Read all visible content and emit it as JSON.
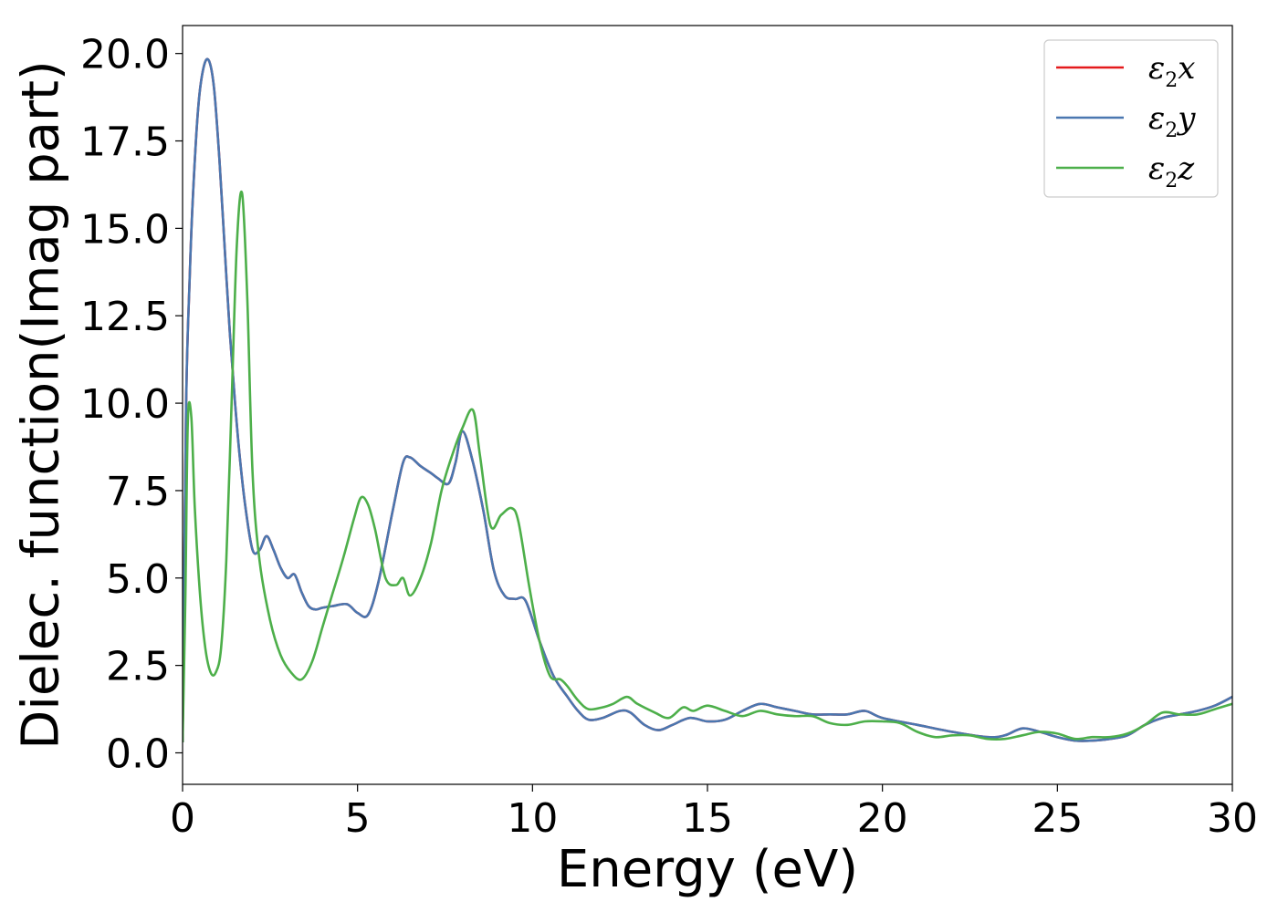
{
  "chart_data": {
    "type": "line",
    "title": "",
    "xlabel": "Energy (eV)",
    "ylabel": "Dielec. function(Imag part)",
    "xlim": [
      0,
      30
    ],
    "ylim": [
      -0.9,
      20.8
    ],
    "xticks": [
      "0",
      "5",
      "10",
      "15",
      "20",
      "25",
      "30"
    ],
    "yticks": [
      "0.0",
      "2.5",
      "5.0",
      "7.5",
      "10.0",
      "12.5",
      "15.0",
      "17.5",
      "20.0"
    ],
    "grid": false,
    "legend_position": "top-right",
    "series": [
      {
        "name": "ε2x",
        "legend": {
          "base": "ε",
          "sub": "2",
          "comp": "x"
        },
        "color": "#e41a1c",
        "x": [
          0,
          0.1,
          0.2,
          0.3,
          0.45,
          0.6,
          0.75,
          0.9,
          1.05,
          1.2,
          1.35,
          1.5,
          1.65,
          1.8,
          2.0,
          2.2,
          2.4,
          2.6,
          2.8,
          3.0,
          3.2,
          3.4,
          3.6,
          3.8,
          4.0,
          4.3,
          4.7,
          5.0,
          5.3,
          5.6,
          6.0,
          6.3,
          6.5,
          6.8,
          7.1,
          7.3,
          7.6,
          7.8,
          8.0,
          8.3,
          8.6,
          8.9,
          9.2,
          9.5,
          9.8,
          10.2,
          10.6,
          11.0,
          11.3,
          11.6,
          12.0,
          12.5,
          12.8,
          13.2,
          13.6,
          14.0,
          14.5,
          15.0,
          15.5,
          16.0,
          16.5,
          17.0,
          17.5,
          18.0,
          18.5,
          19.0,
          19.5,
          20.0,
          21.0,
          22.0,
          23.0,
          23.5,
          24.0,
          24.5,
          25.0,
          25.5,
          26.0,
          26.5,
          27.0,
          27.5,
          28.0,
          28.5,
          29.0,
          29.5,
          30.0
        ],
        "y": [
          0.3,
          9.8,
          13.5,
          16.0,
          18.5,
          19.6,
          19.8,
          19.0,
          17.0,
          14.5,
          12.0,
          10.0,
          8.3,
          7.0,
          5.8,
          5.8,
          6.2,
          5.8,
          5.3,
          5.0,
          5.1,
          4.6,
          4.2,
          4.1,
          4.15,
          4.2,
          4.25,
          4.0,
          3.95,
          4.9,
          6.9,
          8.3,
          8.45,
          8.2,
          8.0,
          7.85,
          7.7,
          8.3,
          9.2,
          8.3,
          6.9,
          5.2,
          4.5,
          4.4,
          4.35,
          3.2,
          2.2,
          1.6,
          1.2,
          0.95,
          1.0,
          1.2,
          1.15,
          0.8,
          0.65,
          0.8,
          1.0,
          0.9,
          0.95,
          1.2,
          1.4,
          1.3,
          1.2,
          1.1,
          1.1,
          1.1,
          1.2,
          1.0,
          0.8,
          0.6,
          0.45,
          0.5,
          0.7,
          0.6,
          0.45,
          0.35,
          0.35,
          0.4,
          0.5,
          0.8,
          1.0,
          1.1,
          1.2,
          1.35,
          1.6
        ]
      },
      {
        "name": "ε2y",
        "legend": {
          "base": "ε",
          "sub": "2",
          "comp": "y"
        },
        "color": "#4a77b0",
        "x": [
          0,
          0.1,
          0.2,
          0.3,
          0.45,
          0.6,
          0.75,
          0.9,
          1.05,
          1.2,
          1.35,
          1.5,
          1.65,
          1.8,
          2.0,
          2.2,
          2.4,
          2.6,
          2.8,
          3.0,
          3.2,
          3.4,
          3.6,
          3.8,
          4.0,
          4.3,
          4.7,
          5.0,
          5.3,
          5.6,
          6.0,
          6.3,
          6.5,
          6.8,
          7.1,
          7.3,
          7.6,
          7.8,
          8.0,
          8.3,
          8.6,
          8.9,
          9.2,
          9.5,
          9.8,
          10.2,
          10.6,
          11.0,
          11.3,
          11.6,
          12.0,
          12.5,
          12.8,
          13.2,
          13.6,
          14.0,
          14.5,
          15.0,
          15.5,
          16.0,
          16.5,
          17.0,
          17.5,
          18.0,
          18.5,
          19.0,
          19.5,
          20.0,
          21.0,
          22.0,
          23.0,
          23.5,
          24.0,
          24.5,
          25.0,
          25.5,
          26.0,
          26.5,
          27.0,
          27.5,
          28.0,
          28.5,
          29.0,
          29.5,
          30.0
        ],
        "y": [
          0.3,
          9.8,
          13.5,
          16.0,
          18.5,
          19.6,
          19.8,
          19.0,
          17.0,
          14.5,
          12.0,
          10.0,
          8.3,
          7.0,
          5.8,
          5.8,
          6.2,
          5.8,
          5.3,
          5.0,
          5.1,
          4.6,
          4.2,
          4.1,
          4.15,
          4.2,
          4.25,
          4.0,
          3.95,
          4.9,
          6.9,
          8.3,
          8.45,
          8.2,
          8.0,
          7.85,
          7.7,
          8.3,
          9.2,
          8.3,
          6.9,
          5.2,
          4.5,
          4.4,
          4.35,
          3.2,
          2.2,
          1.6,
          1.2,
          0.95,
          1.0,
          1.2,
          1.15,
          0.8,
          0.65,
          0.8,
          1.0,
          0.9,
          0.95,
          1.2,
          1.4,
          1.3,
          1.2,
          1.1,
          1.1,
          1.1,
          1.2,
          1.0,
          0.8,
          0.6,
          0.45,
          0.5,
          0.7,
          0.6,
          0.45,
          0.35,
          0.35,
          0.4,
          0.5,
          0.8,
          1.0,
          1.1,
          1.2,
          1.35,
          1.6
        ]
      },
      {
        "name": "ε2z",
        "legend": {
          "base": "ε",
          "sub": "2",
          "comp": "z"
        },
        "color": "#4daf4a",
        "x": [
          0,
          0.08,
          0.15,
          0.25,
          0.35,
          0.5,
          0.65,
          0.8,
          0.95,
          1.1,
          1.25,
          1.4,
          1.55,
          1.7,
          1.85,
          2.0,
          2.2,
          2.5,
          2.8,
          3.1,
          3.4,
          3.7,
          4.0,
          4.3,
          4.6,
          4.9,
          5.1,
          5.3,
          5.5,
          5.8,
          6.1,
          6.3,
          6.5,
          6.8,
          7.1,
          7.4,
          7.7,
          8.0,
          8.3,
          8.5,
          8.8,
          9.1,
          9.4,
          9.6,
          9.9,
          10.2,
          10.5,
          10.8,
          11.0,
          11.3,
          11.6,
          12.0,
          12.3,
          12.7,
          13.0,
          13.5,
          13.9,
          14.3,
          14.6,
          15.0,
          15.5,
          16.0,
          16.5,
          17.0,
          17.5,
          18.0,
          18.5,
          19.0,
          19.5,
          20.0,
          20.5,
          21.0,
          21.5,
          22.0,
          22.5,
          23.0,
          23.5,
          24.0,
          24.5,
          25.0,
          25.5,
          26.0,
          26.5,
          27.0,
          27.5,
          28.0,
          28.5,
          29.0,
          29.5,
          30.0
        ],
        "y": [
          0.3,
          4.5,
          9.5,
          9.6,
          7.0,
          4.5,
          3.0,
          2.3,
          2.3,
          3.0,
          5.5,
          10.0,
          14.5,
          16.0,
          13.0,
          8.0,
          5.5,
          3.8,
          2.8,
          2.3,
          2.1,
          2.6,
          3.6,
          4.6,
          5.6,
          6.7,
          7.3,
          7.1,
          6.4,
          5.0,
          4.8,
          5.0,
          4.5,
          5.0,
          6.0,
          7.5,
          8.5,
          9.3,
          9.8,
          8.5,
          6.5,
          6.8,
          7.0,
          6.6,
          4.8,
          3.2,
          2.2,
          2.1,
          1.9,
          1.5,
          1.25,
          1.3,
          1.4,
          1.6,
          1.4,
          1.15,
          1.0,
          1.3,
          1.2,
          1.35,
          1.2,
          1.05,
          1.2,
          1.1,
          1.05,
          1.05,
          0.85,
          0.8,
          0.9,
          0.9,
          0.85,
          0.6,
          0.45,
          0.5,
          0.5,
          0.4,
          0.4,
          0.5,
          0.6,
          0.55,
          0.4,
          0.45,
          0.45,
          0.55,
          0.8,
          1.15,
          1.1,
          1.1,
          1.25,
          1.4
        ]
      }
    ]
  }
}
